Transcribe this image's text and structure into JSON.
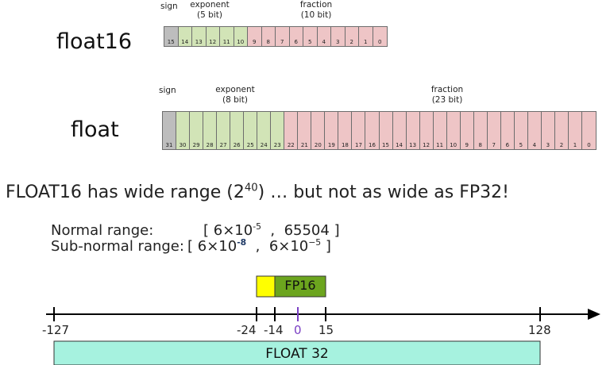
{
  "float16": {
    "label": "float16",
    "sign": "sign",
    "exponent_title": "exponent",
    "exponent_bits": "(5 bit)",
    "fraction_title": "fraction",
    "fraction_bits": "(10 bit)",
    "bit_count": 16,
    "exponent_width": 5
  },
  "float32": {
    "label": "float",
    "sign": "sign",
    "exponent_title": "exponent",
    "exponent_bits": "(8 bit)",
    "fraction_title": "fraction",
    "fraction_bits": "(23 bit)",
    "bit_count": 32,
    "exponent_width": 8
  },
  "headline": {
    "prefix": "FLOAT16 has wide range (2",
    "exp": "40",
    "suffix": ") … but not as wide as FP32!"
  },
  "ranges": {
    "normal_label": "Normal range:",
    "normal_lo_base": "6×10",
    "normal_lo_exp": "-5",
    "normal_hi": "65504",
    "subnormal_label": "Sub-normal range:",
    "subnormal_lo_base": "6×10",
    "subnormal_lo_exp": "-8",
    "subnormal_hi_base": "6×10",
    "subnormal_hi_exp": "−5"
  },
  "number_line": {
    "ticks": [
      "-127",
      "-24",
      "-14",
      "0",
      "15",
      "128"
    ],
    "fp16_label": "FP16",
    "fp32_label": "FLOAT 32",
    "colors": {
      "subnormal": "#ffff00",
      "fp16": "#6ca51e",
      "fp32": "#a6f2df",
      "zero": "#7a3fc4"
    }
  }
}
